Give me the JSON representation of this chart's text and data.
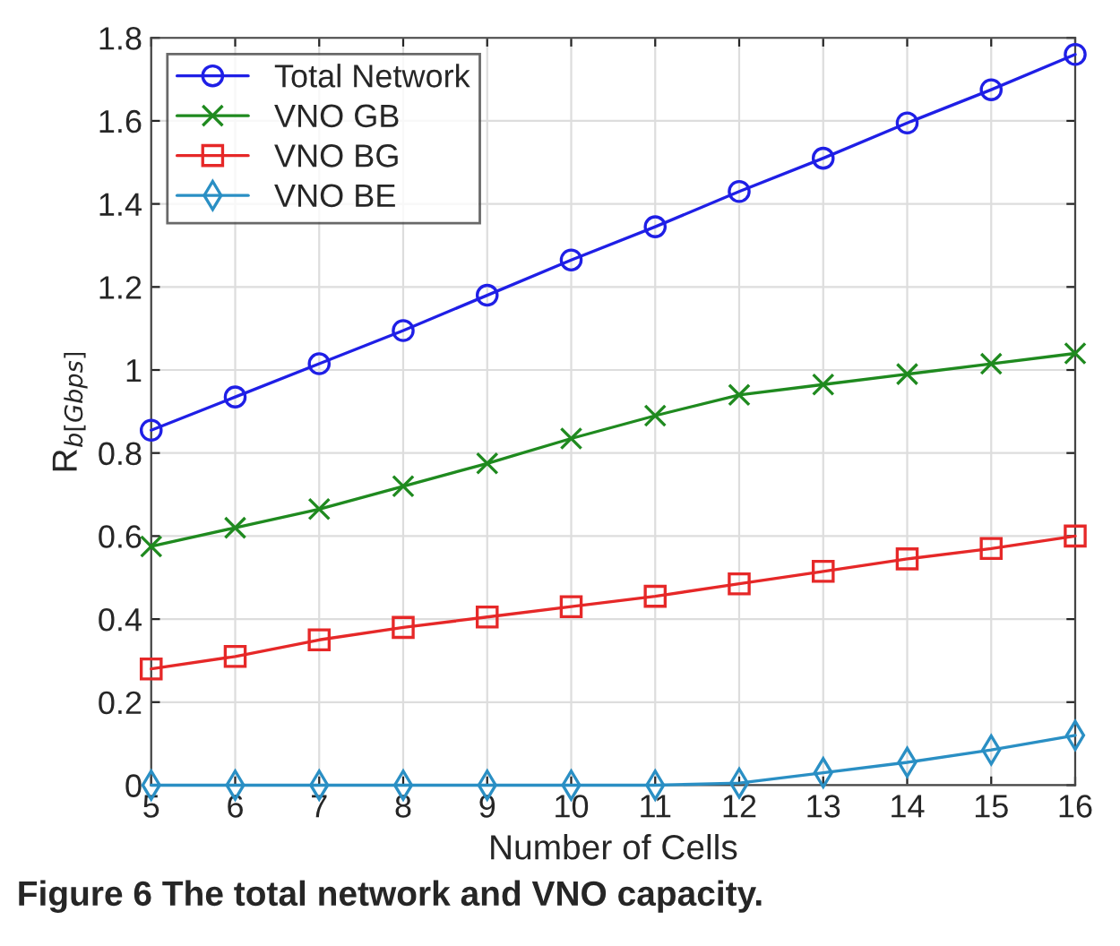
{
  "chart_data": {
    "type": "line",
    "xlabel": "Number of Cells",
    "ylabel": "R$_{b[Gbps]}$",
    "x": [
      5,
      6,
      7,
      8,
      9,
      10,
      11,
      12,
      13,
      14,
      15,
      16
    ],
    "series": [
      {
        "name": "Total Network",
        "color": "#1f1fe6",
        "marker": "circle",
        "values": [
          0.855,
          0.935,
          1.015,
          1.095,
          1.18,
          1.265,
          1.345,
          1.43,
          1.51,
          1.595,
          1.675,
          1.76
        ]
      },
      {
        "name": "VNO GB",
        "color": "#1f8a1f",
        "marker": "cross",
        "values": [
          0.575,
          0.62,
          0.665,
          0.72,
          0.775,
          0.835,
          0.89,
          0.94,
          0.965,
          0.99,
          1.015,
          1.04
        ]
      },
      {
        "name": "VNO BG",
        "color": "#e62828",
        "marker": "square",
        "values": [
          0.28,
          0.31,
          0.35,
          0.38,
          0.405,
          0.43,
          0.455,
          0.485,
          0.515,
          0.545,
          0.57,
          0.6
        ]
      },
      {
        "name": "VNO BE",
        "color": "#2a8fc4",
        "marker": "diamond",
        "values": [
          0,
          0,
          0,
          0,
          0,
          0,
          0,
          0.005,
          0.03,
          0.055,
          0.085,
          0.12
        ]
      }
    ],
    "xlim": [
      5,
      16
    ],
    "xticks": [
      5,
      6,
      7,
      8,
      9,
      10,
      11,
      12,
      13,
      14,
      15,
      16
    ],
    "ylim": [
      0,
      1.8
    ],
    "yticks": [
      0,
      0.2,
      0.4,
      0.6,
      0.8,
      1,
      1.2,
      1.4,
      1.6,
      1.8
    ],
    "grid": true,
    "legend": "top left",
    "line_style": "solid",
    "annotations": [
      "Figure 6 The total network and VNO capacity."
    ]
  }
}
